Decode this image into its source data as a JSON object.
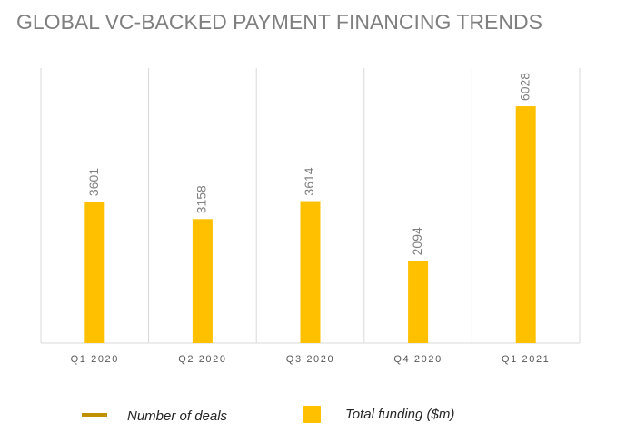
{
  "chart_data": {
    "type": "bar",
    "title": "GLOBAL VC-BACKED PAYMENT FINANCING TRENDS",
    "categories": [
      "Q1 2020",
      "Q2 2020",
      "Q3 2020",
      "Q4 2020",
      "Q1 2021"
    ],
    "series": [
      {
        "name": "Number of deals",
        "type": "line",
        "color": "#bf9000",
        "values": [
          null,
          null,
          null,
          null,
          null
        ]
      },
      {
        "name": "Total funding ($m)",
        "type": "bar",
        "color": "#ffc000",
        "values": [
          3601,
          3158,
          3614,
          2094,
          6028
        ]
      }
    ],
    "ylim": [
      0,
      7000
    ]
  }
}
